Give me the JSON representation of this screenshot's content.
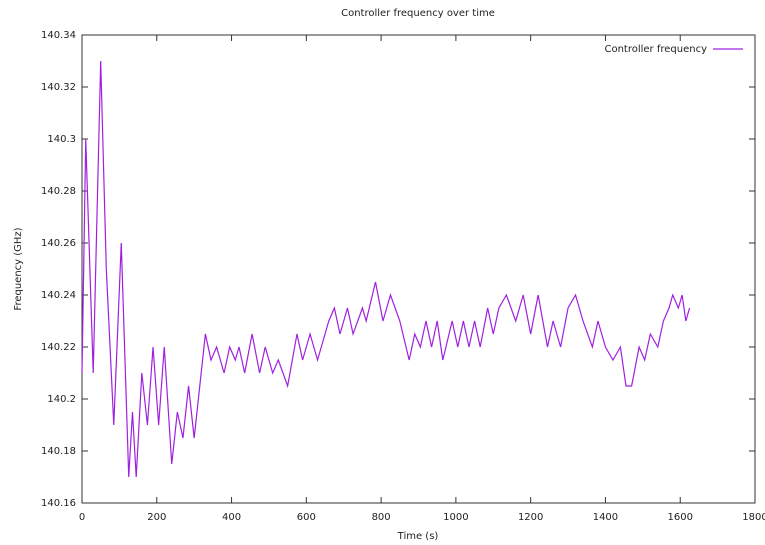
{
  "chart_data": {
    "type": "line",
    "title": "Controller frequency over time",
    "x_label": "Time (s)",
    "y_label": "Frequency (GHz)",
    "legend": "top-right",
    "xlim": [
      0,
      1800
    ],
    "xticks": [
      0,
      200,
      400,
      600,
      800,
      1000,
      1200,
      1400,
      1600,
      1800
    ],
    "ylim": [
      140.16,
      140.34
    ],
    "yticks": [
      140.16,
      140.18,
      140.2,
      140.22,
      140.24,
      140.26,
      140.28,
      140.3,
      140.32,
      140.34
    ],
    "x": [
      0,
      10,
      30,
      50,
      65,
      85,
      105,
      125,
      135,
      145,
      160,
      175,
      190,
      205,
      220,
      240,
      255,
      270,
      285,
      300,
      330,
      345,
      360,
      380,
      395,
      410,
      420,
      435,
      455,
      475,
      490,
      510,
      525,
      550,
      575,
      590,
      610,
      630,
      660,
      675,
      690,
      710,
      725,
      750,
      760,
      785,
      805,
      825,
      850,
      875,
      890,
      905,
      920,
      935,
      950,
      965,
      990,
      1005,
      1020,
      1035,
      1050,
      1065,
      1085,
      1100,
      1115,
      1135,
      1160,
      1180,
      1200,
      1220,
      1245,
      1260,
      1280,
      1300,
      1320,
      1340,
      1365,
      1380,
      1400,
      1420,
      1440,
      1455,
      1470,
      1490,
      1505,
      1520,
      1540,
      1555,
      1570,
      1580,
      1595,
      1605,
      1615,
      1625
    ],
    "series": [
      {
        "name": "Controller frequency",
        "color": "#a020e0",
        "values": [
          140.21,
          140.3,
          140.21,
          140.33,
          140.25,
          140.19,
          140.26,
          140.17,
          140.195,
          140.17,
          140.21,
          140.19,
          140.22,
          140.19,
          140.22,
          140.175,
          140.195,
          140.185,
          140.205,
          140.185,
          140.225,
          140.215,
          140.22,
          140.21,
          140.22,
          140.215,
          140.22,
          140.21,
          140.225,
          140.21,
          140.22,
          140.21,
          140.215,
          140.205,
          140.225,
          140.215,
          140.225,
          140.215,
          140.23,
          140.235,
          140.225,
          140.235,
          140.225,
          140.235,
          140.23,
          140.245,
          140.23,
          140.24,
          140.23,
          140.215,
          140.225,
          140.22,
          140.23,
          140.22,
          140.23,
          140.215,
          140.23,
          140.22,
          140.23,
          140.22,
          140.23,
          140.22,
          140.235,
          140.225,
          140.235,
          140.24,
          140.23,
          140.24,
          140.225,
          140.24,
          140.22,
          140.23,
          140.22,
          140.235,
          140.24,
          140.23,
          140.22,
          140.23,
          140.22,
          140.215,
          140.22,
          140.205,
          140.205,
          140.22,
          140.215,
          140.225,
          140.22,
          140.23,
          140.235,
          140.24,
          140.235,
          140.24,
          140.23,
          140.235
        ]
      }
    ]
  }
}
